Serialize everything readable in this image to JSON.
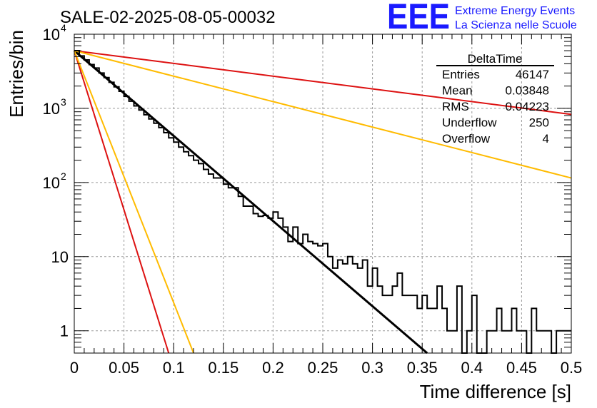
{
  "header": {
    "run_title": "SALE-02-2025-08-05-00032",
    "logo_text": "EEE",
    "brand_line1": "Extreme Energy Events",
    "brand_line2": "La Scienza nelle Scuole",
    "brand_color": "#1a1aff"
  },
  "stats": {
    "title": "DeltaTime",
    "rows": [
      {
        "label": "Entries",
        "value": "46147"
      },
      {
        "label": "Mean",
        "value": "0.03848"
      },
      {
        "label": "RMS",
        "value": "0.04223"
      },
      {
        "label": "Underflow",
        "value": "250"
      },
      {
        "label": "Overflow",
        "value": "4"
      }
    ]
  },
  "chart_data": {
    "type": "line",
    "xlabel": "Time difference [s]",
    "ylabel": "Entries/bin",
    "xlim": [
      0,
      0.5
    ],
    "ylim": [
      0.5,
      10000
    ],
    "yscale": "log",
    "grid": true,
    "x_ticks": [
      "0",
      "0.05",
      "0.1",
      "0.15",
      "0.2",
      "0.25",
      "0.3",
      "0.35",
      "0.4",
      "0.45",
      "0.5"
    ],
    "y_ticks": [
      {
        "value": 1,
        "label": "1"
      },
      {
        "value": 10,
        "label": "10"
      },
      {
        "value": 100,
        "label": "10",
        "exp": "2"
      },
      {
        "value": 1000,
        "label": "10",
        "exp": "3"
      },
      {
        "value": 10000,
        "label": "10",
        "exp": "4"
      }
    ],
    "histogram": {
      "color": "#000000",
      "bin_width": 0.005,
      "values": [
        6000,
        5100,
        4500,
        3900,
        3500,
        3000,
        2600,
        2250,
        1950,
        1700,
        1450,
        1250,
        1080,
        950,
        820,
        720,
        630,
        550,
        470,
        400,
        350,
        300,
        260,
        230,
        200,
        180,
        150,
        130,
        115,
        115,
        95,
        85,
        85,
        65,
        48,
        48,
        38,
        35,
        36,
        33,
        40,
        33,
        25,
        16,
        25,
        15,
        20,
        16,
        15,
        14,
        15,
        10,
        7,
        9,
        8,
        10,
        8,
        7,
        9,
        4,
        7,
        4,
        3,
        3,
        4,
        6,
        3,
        3,
        3,
        2,
        3,
        2,
        2,
        4,
        2,
        1,
        1,
        4,
        0.5,
        1,
        3,
        0.5,
        0.5,
        1,
        1,
        2,
        1,
        1,
        2,
        1,
        1,
        0.5,
        2,
        1,
        1,
        1,
        0.5,
        1,
        1,
        1
      ]
    },
    "fits": [
      {
        "color": "#000000",
        "x": [
          0,
          0.355
        ],
        "y": [
          6000,
          0.5
        ]
      },
      {
        "color": "#dd1111",
        "x": [
          0,
          0.5
        ],
        "y": [
          6000,
          830
        ]
      },
      {
        "color": "#ffbb00",
        "x": [
          0,
          0.5
        ],
        "y": [
          6000,
          115
        ]
      },
      {
        "color": "#dd1111",
        "x": [
          0,
          0.095
        ],
        "y": [
          6000,
          0.5
        ]
      },
      {
        "color": "#ffbb00",
        "x": [
          0,
          0.12
        ],
        "y": [
          6000,
          0.5
        ]
      }
    ]
  }
}
